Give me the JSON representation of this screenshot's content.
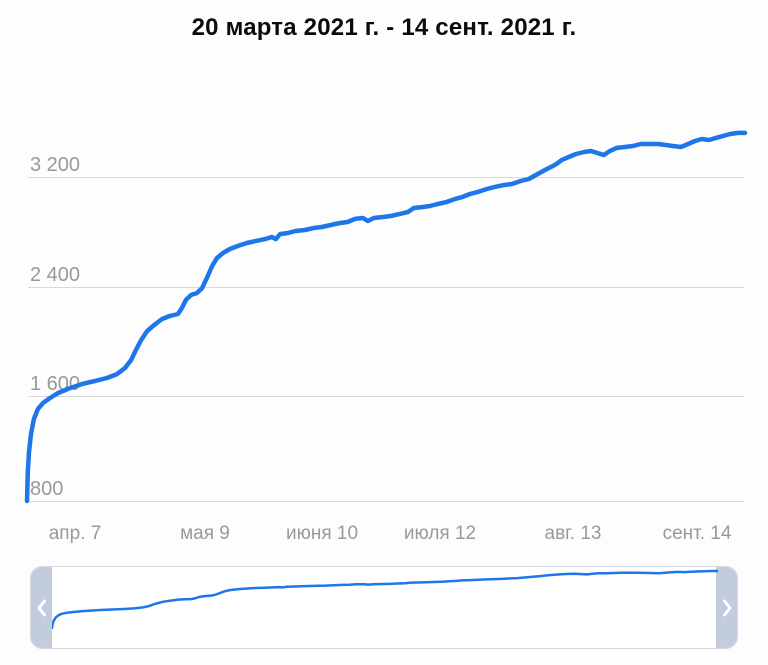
{
  "title": "20 марта 2021 г. - 14 сент. 2021 г.",
  "colors": {
    "line": "#1e76e8",
    "grid": "#d9d9d9",
    "axis_label": "#97999c",
    "title_text": "#0b0b0b",
    "scrubber_handle": "#c2ccdc",
    "scrubber_border": "#d5d9df",
    "chevron": "#ffffff",
    "background": "#fdfdfd"
  },
  "scrubber": {
    "left_icon": "chevron-left",
    "right_icon": "chevron-right"
  },
  "chart_data": {
    "type": "line",
    "title": "20 марта 2021 г. - 14 сент. 2021 г.",
    "x_unit": "days since 2021-03-20",
    "x_range": [
      0,
      178
    ],
    "ylim": [
      760,
      3560
    ],
    "grid": "horizontal",
    "legend": "none",
    "y_ticks": [
      3200,
      2400,
      1600,
      800
    ],
    "y_tick_labels": [
      "3 200",
      "2 400",
      "1 600",
      "800"
    ],
    "x_tick_days": [
      18,
      50,
      82,
      114,
      146,
      178
    ],
    "x_tick_labels": [
      "апр. 7",
      "мая 9",
      "июня 10",
      "июля 12",
      "авг. 13",
      "сент. 14"
    ],
    "series": [
      {
        "name": "cumulative-value",
        "points": [
          [
            0,
            804
          ],
          [
            0.2,
            1019
          ],
          [
            0.5,
            1167
          ],
          [
            1,
            1300
          ],
          [
            1.7,
            1411
          ],
          [
            2.7,
            1485
          ],
          [
            4,
            1530
          ],
          [
            5.7,
            1567
          ],
          [
            7.7,
            1604
          ],
          [
            10.7,
            1641
          ],
          [
            13.6,
            1670
          ],
          [
            16.9,
            1693
          ],
          [
            19.8,
            1715
          ],
          [
            22.3,
            1744
          ],
          [
            24.3,
            1789
          ],
          [
            25.8,
            1848
          ],
          [
            27,
            1922
          ],
          [
            28.3,
            1996
          ],
          [
            29.8,
            2063
          ],
          [
            31.5,
            2107
          ],
          [
            33.5,
            2152
          ],
          [
            35.4,
            2174
          ],
          [
            37.4,
            2189
          ],
          [
            38.4,
            2233
          ],
          [
            39.4,
            2293
          ],
          [
            40.7,
            2330
          ],
          [
            42.1,
            2344
          ],
          [
            43.4,
            2381
          ],
          [
            44.6,
            2456
          ],
          [
            45.9,
            2544
          ],
          [
            47.1,
            2604
          ],
          [
            48.6,
            2641
          ],
          [
            50.3,
            2670
          ],
          [
            52.3,
            2693
          ],
          [
            54.5,
            2715
          ],
          [
            56.8,
            2730
          ],
          [
            59,
            2744
          ],
          [
            60.7,
            2759
          ],
          [
            61.7,
            2744
          ],
          [
            62.7,
            2781
          ],
          [
            64.7,
            2789
          ],
          [
            66.6,
            2804
          ],
          [
            68.9,
            2811
          ],
          [
            71.1,
            2826
          ],
          [
            73.1,
            2833
          ],
          [
            75.3,
            2848
          ],
          [
            77.6,
            2863
          ],
          [
            79.5,
            2870
          ],
          [
            81.3,
            2893
          ],
          [
            83.3,
            2900
          ],
          [
            84.5,
            2878
          ],
          [
            86,
            2900
          ],
          [
            88,
            2907
          ],
          [
            90.2,
            2915
          ],
          [
            92.4,
            2930
          ],
          [
            94.4,
            2944
          ],
          [
            95.9,
            2974
          ],
          [
            97.9,
            2981
          ],
          [
            99.9,
            2989
          ],
          [
            101.8,
            3004
          ],
          [
            104.1,
            3019
          ],
          [
            106.1,
            3041
          ],
          [
            108,
            3056
          ],
          [
            109.8,
            3078
          ],
          [
            111.8,
            3093
          ],
          [
            114,
            3115
          ],
          [
            116,
            3130
          ],
          [
            118.2,
            3144
          ],
          [
            120.2,
            3152
          ],
          [
            122.4,
            3174
          ],
          [
            124.4,
            3189
          ],
          [
            126.6,
            3226
          ],
          [
            128.9,
            3263
          ],
          [
            130.9,
            3293
          ],
          [
            132.6,
            3330
          ],
          [
            134.3,
            3352
          ],
          [
            136.1,
            3374
          ],
          [
            138.1,
            3389
          ],
          [
            139.8,
            3396
          ],
          [
            141.5,
            3381
          ],
          [
            143,
            3367
          ],
          [
            144.5,
            3396
          ],
          [
            146.2,
            3419
          ],
          [
            148.2,
            3426
          ],
          [
            150.2,
            3433
          ],
          [
            152.2,
            3448
          ],
          [
            154.4,
            3448
          ],
          [
            156.4,
            3448
          ],
          [
            158.4,
            3441
          ],
          [
            160.1,
            3433
          ],
          [
            162.1,
            3426
          ],
          [
            163.9,
            3448
          ],
          [
            165.6,
            3470
          ],
          [
            167.3,
            3485
          ],
          [
            169.1,
            3478
          ],
          [
            170.8,
            3493
          ],
          [
            172.5,
            3507
          ],
          [
            174.3,
            3522
          ],
          [
            176.3,
            3530
          ],
          [
            178,
            3530
          ]
        ]
      }
    ]
  }
}
